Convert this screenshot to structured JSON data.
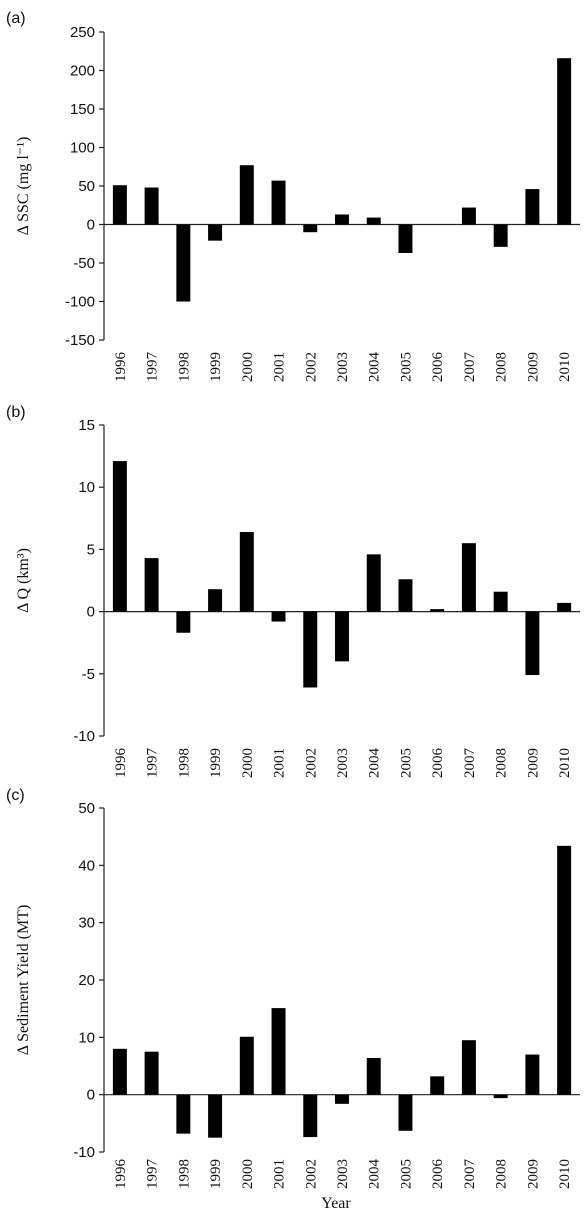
{
  "chart_data": [
    {
      "type": "bar",
      "panel_label": "(a)",
      "ylabel": "Δ SSC (mg l⁻¹)",
      "xlabel": "",
      "ylim": [
        -150,
        250
      ],
      "yticks": [
        -150,
        -100,
        -50,
        0,
        50,
        100,
        150,
        200,
        250
      ],
      "grid": false,
      "categories": [
        "1996",
        "1997",
        "1998",
        "1999",
        "2000",
        "2001",
        "2002",
        "2003",
        "2004",
        "2005",
        "2006",
        "2007",
        "2008",
        "2009",
        "2010"
      ],
      "values": [
        51,
        48,
        -100,
        -21,
        77,
        57,
        -10,
        13,
        9,
        -37,
        0,
        22,
        -29,
        46,
        216
      ],
      "bar_color": "#000000"
    },
    {
      "type": "bar",
      "panel_label": "(b)",
      "ylabel": "Δ Q (km³)",
      "xlabel": "",
      "ylim": [
        -10,
        15
      ],
      "yticks": [
        -10,
        -5,
        0,
        5,
        10,
        15
      ],
      "grid": false,
      "categories": [
        "1996",
        "1997",
        "1998",
        "1999",
        "2000",
        "2001",
        "2002",
        "2003",
        "2004",
        "2005",
        "2006",
        "2007",
        "2008",
        "2009",
        "2010"
      ],
      "values": [
        12.1,
        4.3,
        -1.7,
        1.8,
        6.4,
        -0.8,
        -6.1,
        -4.0,
        4.6,
        2.6,
        0.2,
        5.5,
        1.6,
        -5.1,
        0.7
      ],
      "bar_color": "#000000"
    },
    {
      "type": "bar",
      "panel_label": "(c)",
      "ylabel": "Δ Sediment Yield (MT)",
      "xlabel": "Year",
      "ylim": [
        -10,
        50
      ],
      "yticks": [
        -10,
        0,
        10,
        20,
        30,
        40,
        50
      ],
      "grid": false,
      "categories": [
        "1996",
        "1997",
        "1998",
        "1999",
        "2000",
        "2001",
        "2002",
        "2003",
        "2004",
        "2005",
        "2006",
        "2007",
        "2008",
        "2009",
        "2010"
      ],
      "values": [
        8.0,
        7.5,
        -6.8,
        -7.5,
        10.1,
        15.1,
        -7.4,
        -1.6,
        6.4,
        -6.3,
        3.2,
        9.5,
        -0.6,
        7.0,
        43.4
      ],
      "bar_color": "#000000"
    }
  ]
}
